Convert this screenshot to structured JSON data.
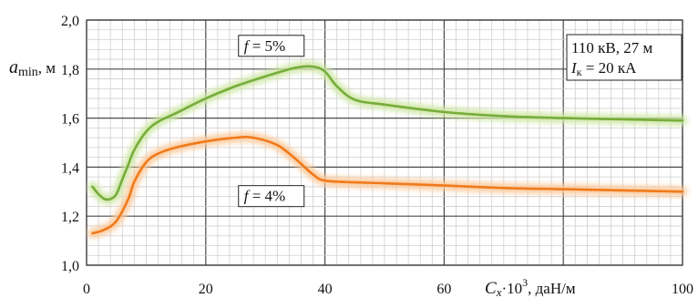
{
  "chart_data": {
    "type": "line",
    "ylabel_main": "a",
    "ylabel_sub": "min",
    "ylabel_unit": ", м",
    "xlabel_main": "C",
    "xlabel_sub": "x",
    "xlabel_rest": "·10",
    "xlabel_exp": "3",
    "xlabel_unit": ", даН/м",
    "xlim": [
      0,
      100
    ],
    "ylim": [
      1.0,
      2.0
    ],
    "x_ticks": [
      0,
      20,
      40,
      60,
      80,
      100
    ],
    "x_tick_labels": [
      "0",
      "20",
      "40",
      "60",
      "80",
      "100"
    ],
    "y_ticks": [
      1.0,
      1.2,
      1.4,
      1.6,
      1.8,
      2.0
    ],
    "y_tick_labels": [
      "1,0",
      "1,2",
      "1,4",
      "1,6",
      "1,8",
      "2,0"
    ],
    "grid": true,
    "series": [
      {
        "name": "f = 5%",
        "color": "#76ad3b",
        "glow": "#cfe7a4",
        "x": [
          1,
          2,
          3,
          4,
          5,
          6,
          7,
          8,
          10,
          12,
          15,
          20,
          25,
          30,
          35,
          38,
          40,
          42,
          45,
          50,
          60,
          70,
          80,
          90,
          100
        ],
        "y": [
          1.32,
          1.29,
          1.27,
          1.27,
          1.29,
          1.35,
          1.41,
          1.47,
          1.545,
          1.585,
          1.62,
          1.68,
          1.73,
          1.77,
          1.805,
          1.81,
          1.79,
          1.73,
          1.675,
          1.655,
          1.625,
          1.608,
          1.6,
          1.595,
          1.59
        ]
      },
      {
        "name": "f = 4%",
        "color": "#f07a1c",
        "glow": "#fbc99a",
        "x": [
          1,
          3,
          5,
          7,
          8,
          10,
          12,
          15,
          20,
          25,
          28,
          32,
          35,
          38,
          40,
          45,
          50,
          60,
          70,
          80,
          90,
          100
        ],
        "y": [
          1.13,
          1.145,
          1.18,
          1.27,
          1.34,
          1.42,
          1.455,
          1.48,
          1.505,
          1.52,
          1.52,
          1.49,
          1.435,
          1.37,
          1.345,
          1.338,
          1.334,
          1.325,
          1.315,
          1.31,
          1.305,
          1.3
        ]
      }
    ],
    "annotations": [
      {
        "series": 0,
        "pre": "f",
        "text": " = 5%",
        "x": 31,
        "y": 1.893
      },
      {
        "series": 1,
        "pre": "f",
        "text": " = 4%",
        "x": 31,
        "y": 1.28
      }
    ],
    "infobox": {
      "line1": "110 кВ, 27 м",
      "line2_main": "I",
      "line2_sub": "к",
      "line2_rest": " = 20 кА"
    }
  }
}
